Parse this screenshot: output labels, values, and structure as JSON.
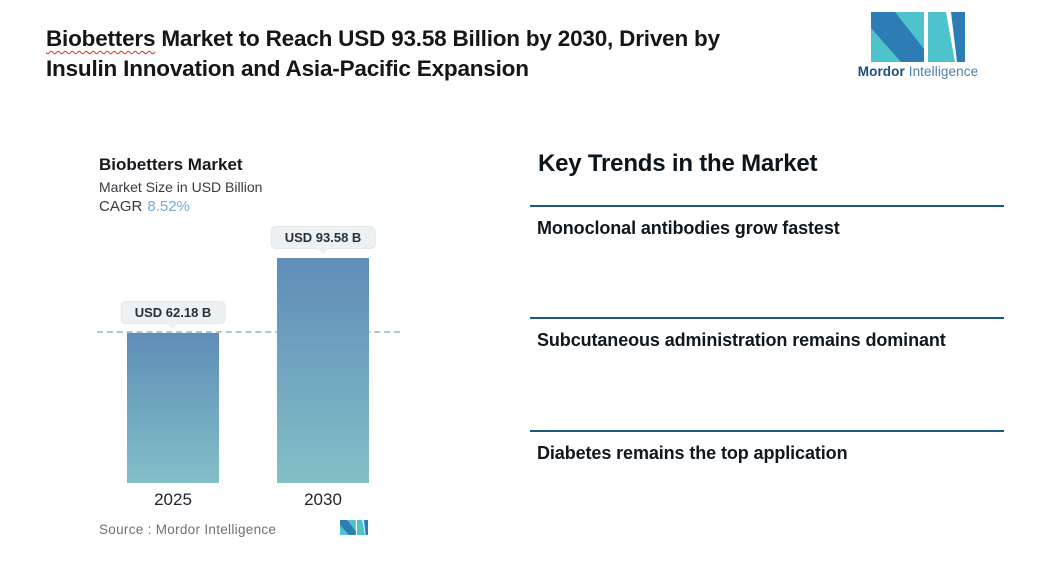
{
  "header": {
    "title": {
      "highlight": "Biobetters",
      "rest_line1": " Market to Reach USD 93.58 Billion by 2030, Driven by",
      "line2": "Insulin Innovation and Asia-Pacific Expansion"
    },
    "logo": {
      "word1": "Mordor",
      "word2": "Intelligence"
    }
  },
  "chart": {
    "title": "Biobetters Market",
    "subtitle": "Market Size in USD Billion",
    "cagr_label": "CAGR",
    "cagr_value": "8.52%",
    "bars": [
      {
        "year": "2025",
        "label": "USD 62.18 B",
        "value": 62.18
      },
      {
        "year": "2030",
        "label": "USD 93.58 B",
        "value": 93.58
      }
    ],
    "source_label": "Source :  Mordor Intelligence"
  },
  "chart_data": {
    "type": "bar",
    "categories": [
      "2025",
      "2030"
    ],
    "values": [
      62.18,
      93.58
    ],
    "value_labels": [
      "USD 62.18 B",
      "USD 93.58 B"
    ],
    "title": "Biobetters Market",
    "subtitle": "Market Size in USD Billion",
    "cagr": "8.52%",
    "xlabel": "",
    "ylabel": "Market Size in USD Billion",
    "ylim": [
      0,
      100
    ],
    "grid": false,
    "legend": "none",
    "annotations": [
      "horizontal dashed reference line at 2025 value (62.18)"
    ]
  },
  "trends": {
    "heading": "Key Trends in the Market",
    "items": [
      "Monoclonal antibodies grow fastest",
      "Subcutaneous administration remains dominant",
      "Diabetes remains the top application"
    ]
  },
  "colors": {
    "accent_teal": "#4fc3cc",
    "accent_blue": "#2e7cb5",
    "bar_gradient_top": "#5f8db8",
    "bar_gradient_bottom": "#83bfc7",
    "dashed_reference_line": "#abc8db",
    "trend_divider": "#1b5b7e",
    "cagr_value": "#76aad0",
    "callout_background": "#edf1f3",
    "source_text": "#6d7277",
    "spellcheck_underline": "#d93025",
    "logo_text_dark": "#1d4e79",
    "logo_text_light": "#4c7fac"
  }
}
